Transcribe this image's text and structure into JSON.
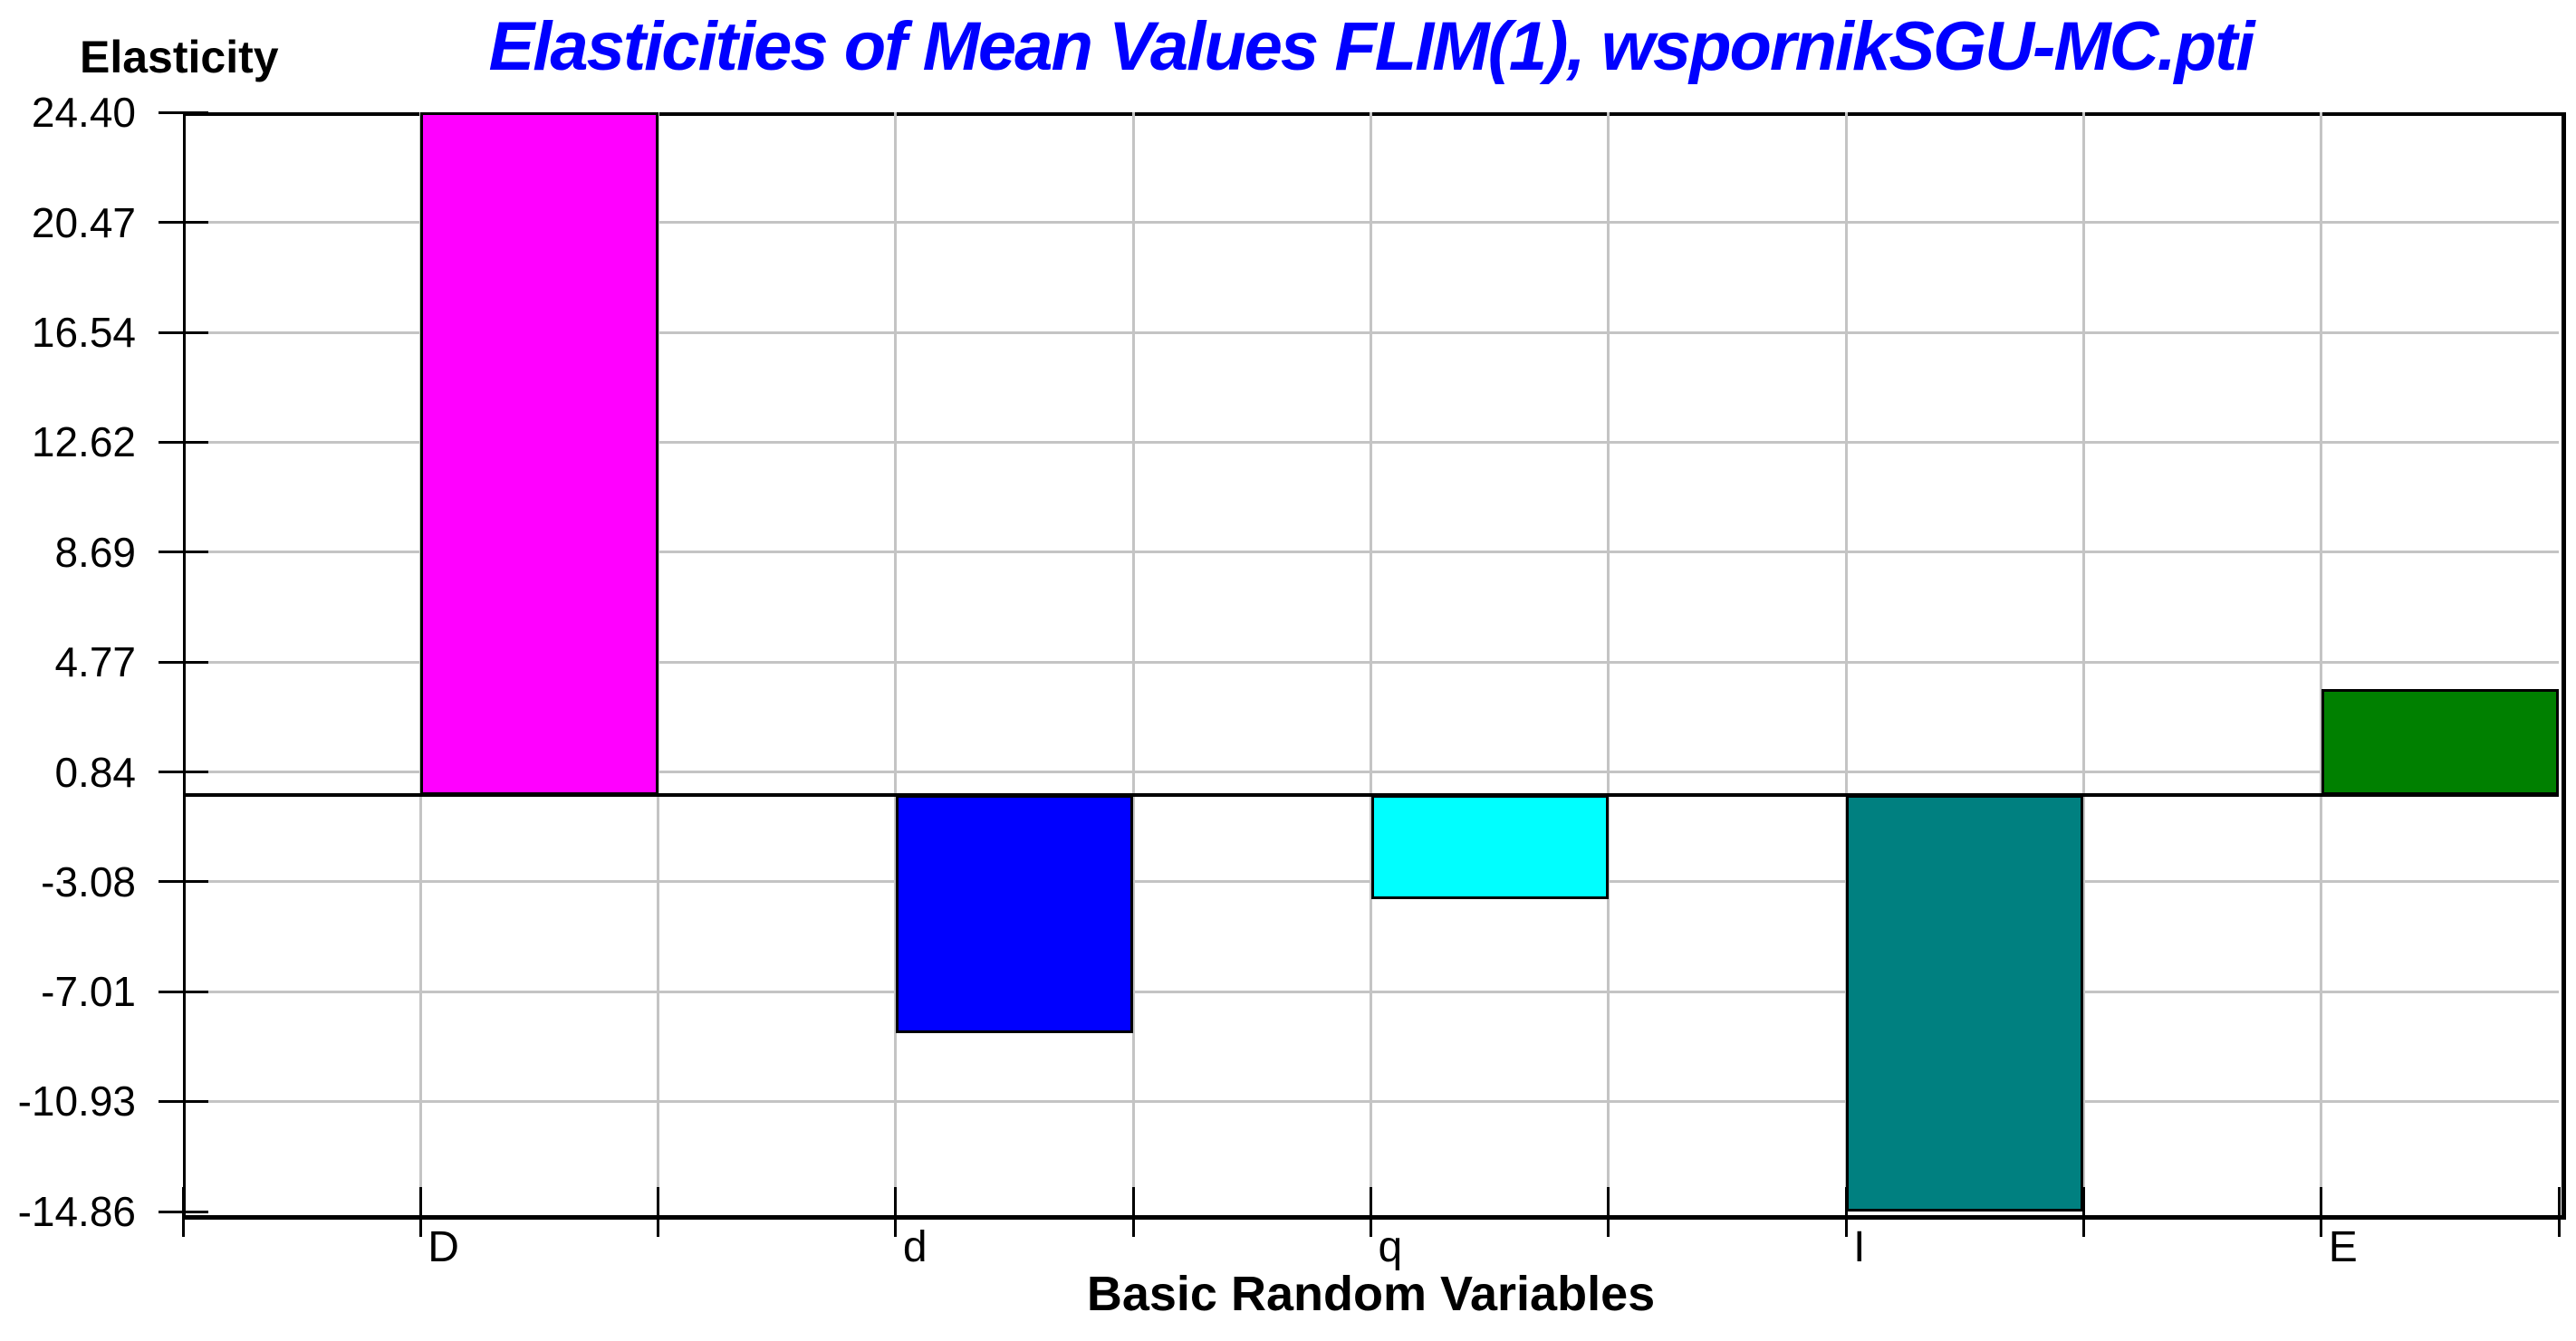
{
  "title": "Elasticities of Mean Values FLIM(1), wspornikSGU-MC.pti",
  "y_axis_title": "Elasticity",
  "x_axis_title": "Basic Random Variables",
  "colors": {
    "title": "#0000FF",
    "axis": "#000000",
    "grid": "#C4C4C4",
    "background": "#FFFFFF"
  },
  "chart_data": {
    "type": "bar",
    "title": "Elasticities of Mean Values FLIM(1), wspornikSGU-MC.pti",
    "xlabel": "Basic Random Variables",
    "ylabel": "Elasticity",
    "categories": [
      "D",
      "d",
      "q",
      "I",
      "E"
    ],
    "values": [
      24.4,
      -8.5,
      -3.7,
      -14.86,
      3.8
    ],
    "bar_colors": [
      "#FF00FF",
      "#0000FF",
      "#00FFFF",
      "#008080",
      "#008000"
    ],
    "y_ticks": [
      24.4,
      20.47,
      16.54,
      12.62,
      8.69,
      4.77,
      0.84,
      -3.08,
      -7.01,
      -10.93,
      -14.86
    ],
    "y_tick_labels": [
      "24.40",
      "20.47",
      "16.54",
      "12.62",
      "8.69",
      "4.77",
      "0.84",
      "-3.08",
      "-7.01",
      "-10.93",
      "-14.86"
    ],
    "ylim": [
      -14.86,
      24.4
    ],
    "zero_line": 0,
    "grid": true,
    "legend_position": "none",
    "bar_width_fraction_of_slot": 0.5,
    "bar_alignment_in_slot": "right-half"
  }
}
